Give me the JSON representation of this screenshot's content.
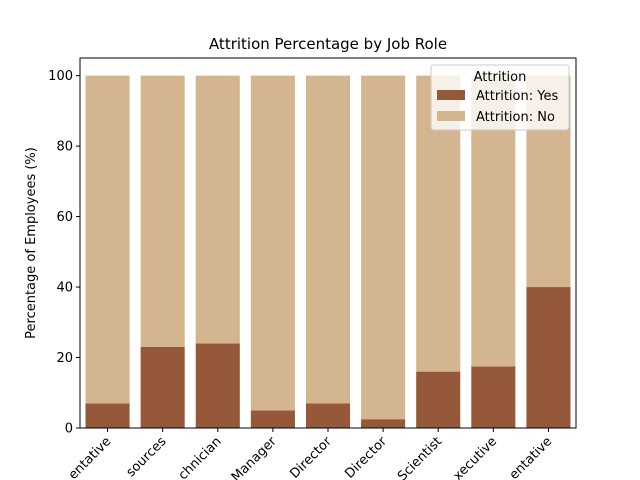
{
  "chart_data": {
    "type": "bar",
    "stacked": true,
    "title": "Attrition Percentage by Job Role",
    "xlabel": "",
    "ylabel": "Percentage of Employees (%)",
    "ylim": [
      0,
      105
    ],
    "yticks": [
      0,
      20,
      40,
      60,
      80,
      100
    ],
    "grid": false,
    "legend_position": "top-right",
    "legend_title": "Attrition",
    "categories": [
      "Sales Representative",
      "Human Resources",
      "Laboratory Technician",
      "Manager",
      "Manufacturing Director",
      "Research Director",
      "Research Scientist",
      "Sales Executive",
      "Sales Representative"
    ],
    "visible_tick_labels": [
      "entative",
      "sources",
      "chnician",
      "Manager",
      "Director",
      "Director",
      "Scientist",
      "xecutive",
      "entative"
    ],
    "series": [
      {
        "name": "Attrition: Yes",
        "color": "#955939",
        "values": [
          7,
          23,
          24,
          5,
          7,
          2.5,
          16,
          17.5,
          40
        ]
      },
      {
        "name": "Attrition: No",
        "color": "#d3b690",
        "values": [
          93,
          77,
          76,
          95,
          93,
          97.5,
          84,
          82.5,
          60
        ]
      }
    ]
  }
}
